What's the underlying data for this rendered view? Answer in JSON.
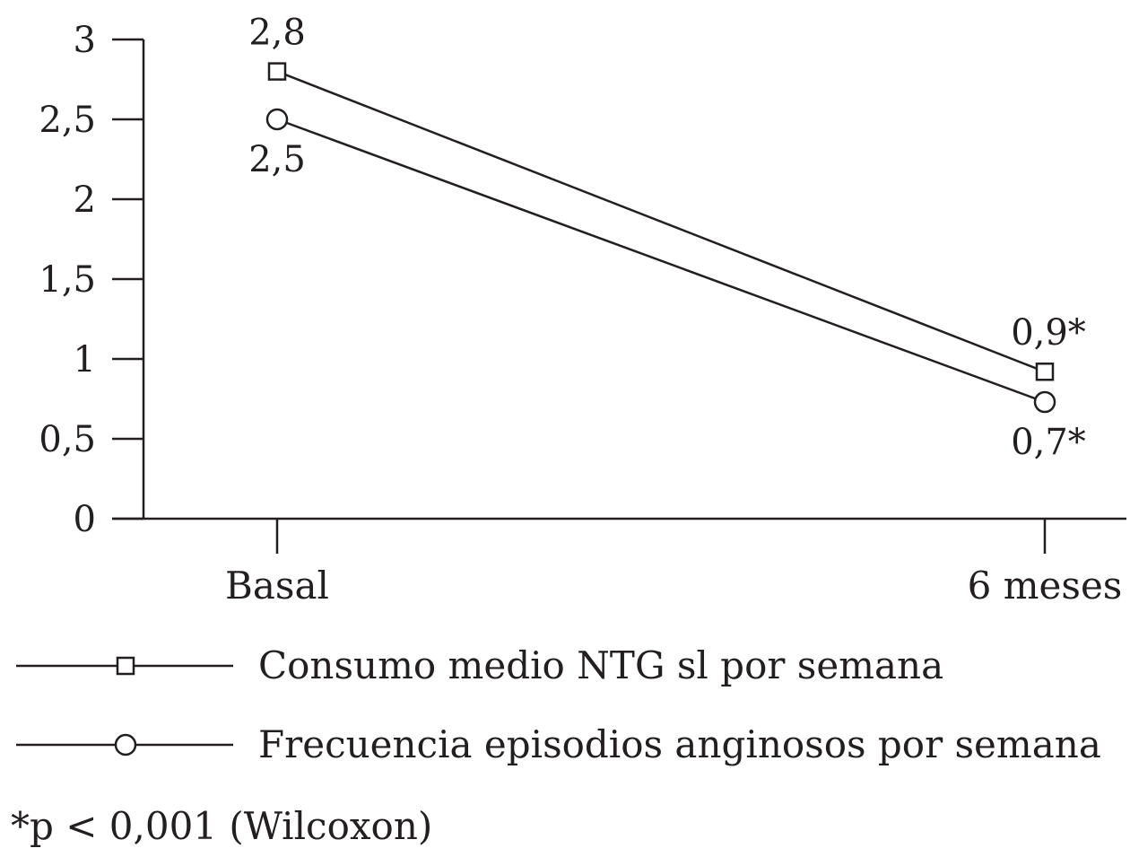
{
  "chart_data": {
    "type": "line",
    "categories": [
      "Basal",
      "6 meses"
    ],
    "y_ticks": [
      "0",
      "0,5",
      "1",
      "1,5",
      "2",
      "2,5",
      "3"
    ],
    "ylim": [
      0,
      3
    ],
    "grid": false,
    "legend_placement": "bottom",
    "series": [
      {
        "name": "Consumo medio NTG sl por semana",
        "marker": "square",
        "values": [
          2.8,
          0.92
        ],
        "labels": [
          "2,8",
          "0,9*"
        ]
      },
      {
        "name": "Frecuencia episodios anginosos por semana",
        "marker": "circle",
        "values": [
          2.5,
          0.73
        ],
        "labels": [
          "2,5",
          "0,7*"
        ]
      }
    ],
    "footnote": "*p < 0,001 (Wilcoxon)"
  }
}
